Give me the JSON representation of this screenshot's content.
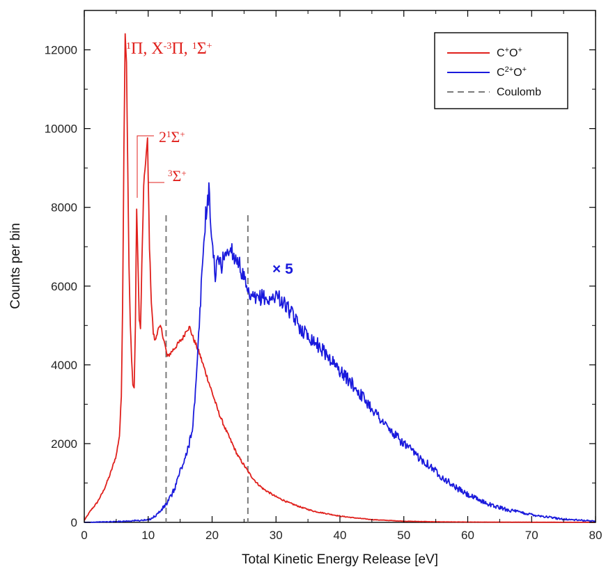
{
  "chart_data": {
    "type": "line",
    "xlabel": "Total Kinetic Energy Release [eV]",
    "ylabel": "Counts per bin",
    "xlim": [
      0,
      80
    ],
    "ylim": [
      0,
      13000
    ],
    "x_ticks": [
      0,
      10,
      20,
      30,
      40,
      50,
      60,
      70,
      80
    ],
    "y_ticks": [
      0,
      2000,
      4000,
      6000,
      8000,
      10000,
      12000
    ],
    "x_tick_labels": [
      "0",
      "10",
      "20",
      "30",
      "40",
      "50",
      "60",
      "70",
      "80"
    ],
    "y_tick_labels": [
      "0",
      "2000",
      "4000",
      "6000",
      "8000",
      "10000",
      "12000"
    ],
    "grid": false,
    "legend_position": "top-right",
    "legend": {
      "c1": {
        "base": "C",
        "sup1": "+",
        "mid": "O",
        "sup2": "+"
      },
      "c2": {
        "base": "C",
        "sup1": "2+",
        "mid": "O",
        "sup2": "+"
      },
      "coulomb": "Coulomb"
    },
    "series": [
      {
        "name": "C+O+",
        "color": "#e0201c",
        "x": [
          0,
          1,
          2,
          3,
          4,
          5,
          5.5,
          5.8,
          6.0,
          6.2,
          6.4,
          6.6,
          6.8,
          7.0,
          7.2,
          7.4,
          7.6,
          7.8,
          8.0,
          8.2,
          8.4,
          8.6,
          8.8,
          9.0,
          9.3,
          9.6,
          9.9,
          10.2,
          10.5,
          10.8,
          11.1,
          11.5,
          12.0,
          12.5,
          13.0,
          13.5,
          14.0,
          14.5,
          15.0,
          15.5,
          16.0,
          16.5,
          17.0,
          18.0,
          19.0,
          20.0,
          21.0,
          22.0,
          23.0,
          24.0,
          25.0,
          26.0,
          27.0,
          28.0,
          30.0,
          32.0,
          34.0,
          36.0,
          38.0,
          40.0,
          42.0,
          45.0,
          50.0,
          55.0,
          60.0,
          70.0,
          80.0
        ],
        "y": [
          50,
          300,
          500,
          800,
          1200,
          1700,
          2200,
          3200,
          5500,
          9500,
          12450,
          11700,
          9000,
          6500,
          5000,
          4200,
          3500,
          3400,
          5000,
          8000,
          6500,
          5200,
          4900,
          6500,
          8500,
          9200,
          9700,
          7000,
          5600,
          4800,
          4600,
          4900,
          4950,
          4600,
          4200,
          4300,
          4400,
          4500,
          4600,
          4700,
          4900,
          4950,
          4700,
          4300,
          3800,
          3300,
          2800,
          2400,
          2050,
          1700,
          1450,
          1200,
          1000,
          850,
          650,
          500,
          380,
          280,
          220,
          160,
          120,
          70,
          30,
          15,
          8,
          4,
          2
        ]
      },
      {
        "name": "C2+O+",
        "color": "#1a1adc",
        "x": [
          0,
          5,
          10,
          11,
          12,
          13,
          14,
          15,
          16,
          17,
          17.5,
          18,
          18.5,
          19,
          19.5,
          20,
          20.5,
          21,
          21.5,
          22,
          22.5,
          23,
          23.5,
          24,
          24.5,
          25,
          25.5,
          26,
          27,
          28,
          29,
          30,
          31,
          32,
          33,
          34,
          35,
          36,
          38,
          40,
          42,
          44,
          46,
          48,
          50,
          52,
          54,
          56,
          58,
          60,
          62,
          64,
          66,
          68,
          70,
          72,
          74,
          76,
          78,
          80
        ],
        "y": [
          0,
          20,
          60,
          150,
          300,
          500,
          800,
          1300,
          1700,
          2500,
          3500,
          5000,
          6600,
          7800,
          8400,
          7100,
          6300,
          6700,
          6500,
          6900,
          6800,
          7000,
          6700,
          6700,
          6400,
          6200,
          5800,
          5700,
          5650,
          5750,
          5600,
          5800,
          5600,
          5400,
          5150,
          4900,
          4750,
          4600,
          4250,
          3850,
          3500,
          3100,
          2700,
          2300,
          2000,
          1700,
          1450,
          1150,
          900,
          700,
          550,
          420,
          330,
          260,
          200,
          150,
          100,
          70,
          50,
          30
        ]
      }
    ],
    "coulomb_lines": [
      12.8,
      25.6
    ],
    "annotations": {
      "scale": "× 5"
    }
  }
}
